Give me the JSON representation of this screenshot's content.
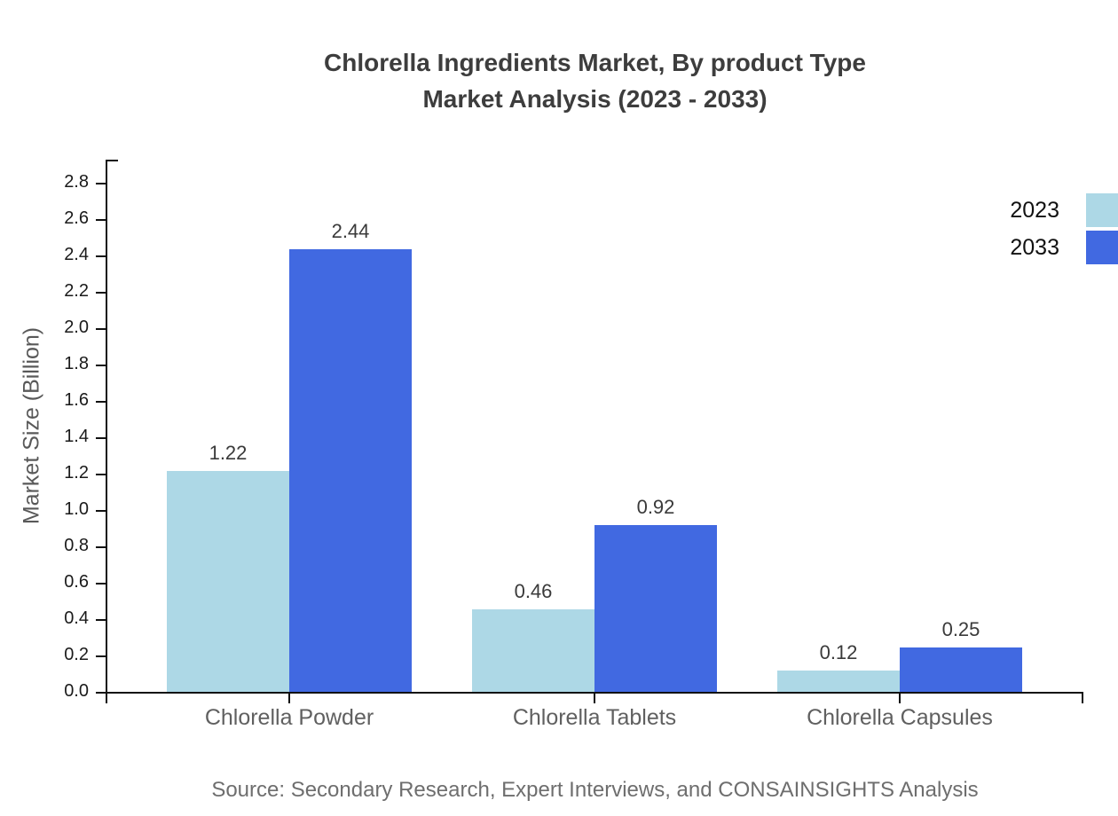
{
  "chart_data": {
    "type": "bar",
    "title": "Chlorella Ingredients Market, By product Type Market Analysis (2023 - 2033)",
    "title_lines": {
      "line1": "Chlorella Ingredients Market, By product Type",
      "line2": "Market Analysis (2023 - 2033)"
    },
    "categories": [
      "Chlorella Powder",
      "Chlorella Tablets",
      "Chlorella Capsules"
    ],
    "series": [
      {
        "name": "2023",
        "color": "#ADD8E6",
        "values": [
          1.22,
          0.46,
          0.12
        ]
      },
      {
        "name": "2033",
        "color": "#4169E1",
        "values": [
          2.44,
          0.92,
          0.25
        ]
      }
    ],
    "xlabel": "",
    "ylabel": "Market Size (Billion)",
    "ylim": [
      0.0,
      2.9
    ],
    "yticks": [
      "0.0",
      "0.2",
      "0.4",
      "0.6",
      "0.8",
      "1.0",
      "1.2",
      "1.4",
      "1.6",
      "1.8",
      "2.0",
      "2.2",
      "2.4",
      "2.6",
      "2.8"
    ],
    "grid": false,
    "legend_position": "top-right",
    "value_labels_shown": true
  },
  "source": "Source: Secondary Research, Expert Interviews, and CONSAINSIGHTS Analysis",
  "colors": {
    "axis": "#111111",
    "title_text": "#3d3d3d",
    "tick_label_text": "#1a1a1a",
    "category_text": "#606060",
    "value_label_text": "#3a3a3a",
    "y_axis_title_text": "#595959",
    "source_text": "#6e6e6e",
    "series_2023": "#ADD8E6",
    "series_2033": "#4169E1"
  }
}
